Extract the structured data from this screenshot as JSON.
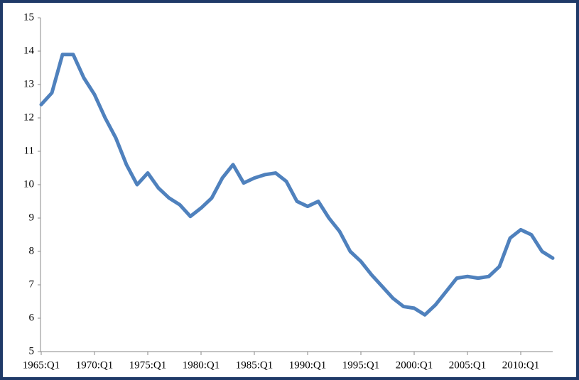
{
  "chart_data": {
    "type": "line",
    "categories": [
      "1965:Q1",
      null,
      null,
      null,
      null,
      "1970:Q1",
      null,
      null,
      null,
      null,
      "1975:Q1",
      null,
      null,
      null,
      null,
      "1980:Q1",
      null,
      null,
      null,
      null,
      "1985:Q1",
      null,
      null,
      null,
      null,
      "1990:Q1",
      null,
      null,
      null,
      null,
      "1995:Q1",
      null,
      null,
      null,
      null,
      "2000:Q1",
      null,
      null,
      null,
      null,
      "2005:Q1",
      null,
      null,
      null,
      null,
      "2010:Q1",
      null,
      null,
      null
    ],
    "series": [
      {
        "color": "#4f81bd",
        "values": [
          12.4,
          12.75,
          13.9,
          13.9,
          13.2,
          12.7,
          12.0,
          11.4,
          10.6,
          10.0,
          10.35,
          9.9,
          9.6,
          9.4,
          9.05,
          9.3,
          9.6,
          10.2,
          10.6,
          10.05,
          10.2,
          10.3,
          10.35,
          10.1,
          9.5,
          9.35,
          9.5,
          9.0,
          8.6,
          8.0,
          7.7,
          7.3,
          6.95,
          6.6,
          6.35,
          6.3,
          6.1,
          6.4,
          6.8,
          7.2,
          7.25,
          7.2,
          7.25,
          7.55,
          8.4,
          8.65,
          8.5,
          8.0,
          7.8
        ]
      }
    ],
    "ylim": [
      5,
      15
    ],
    "yticks": [
      5,
      6,
      7,
      8,
      9,
      10,
      11,
      12,
      13,
      14,
      15
    ],
    "grid": false
  }
}
